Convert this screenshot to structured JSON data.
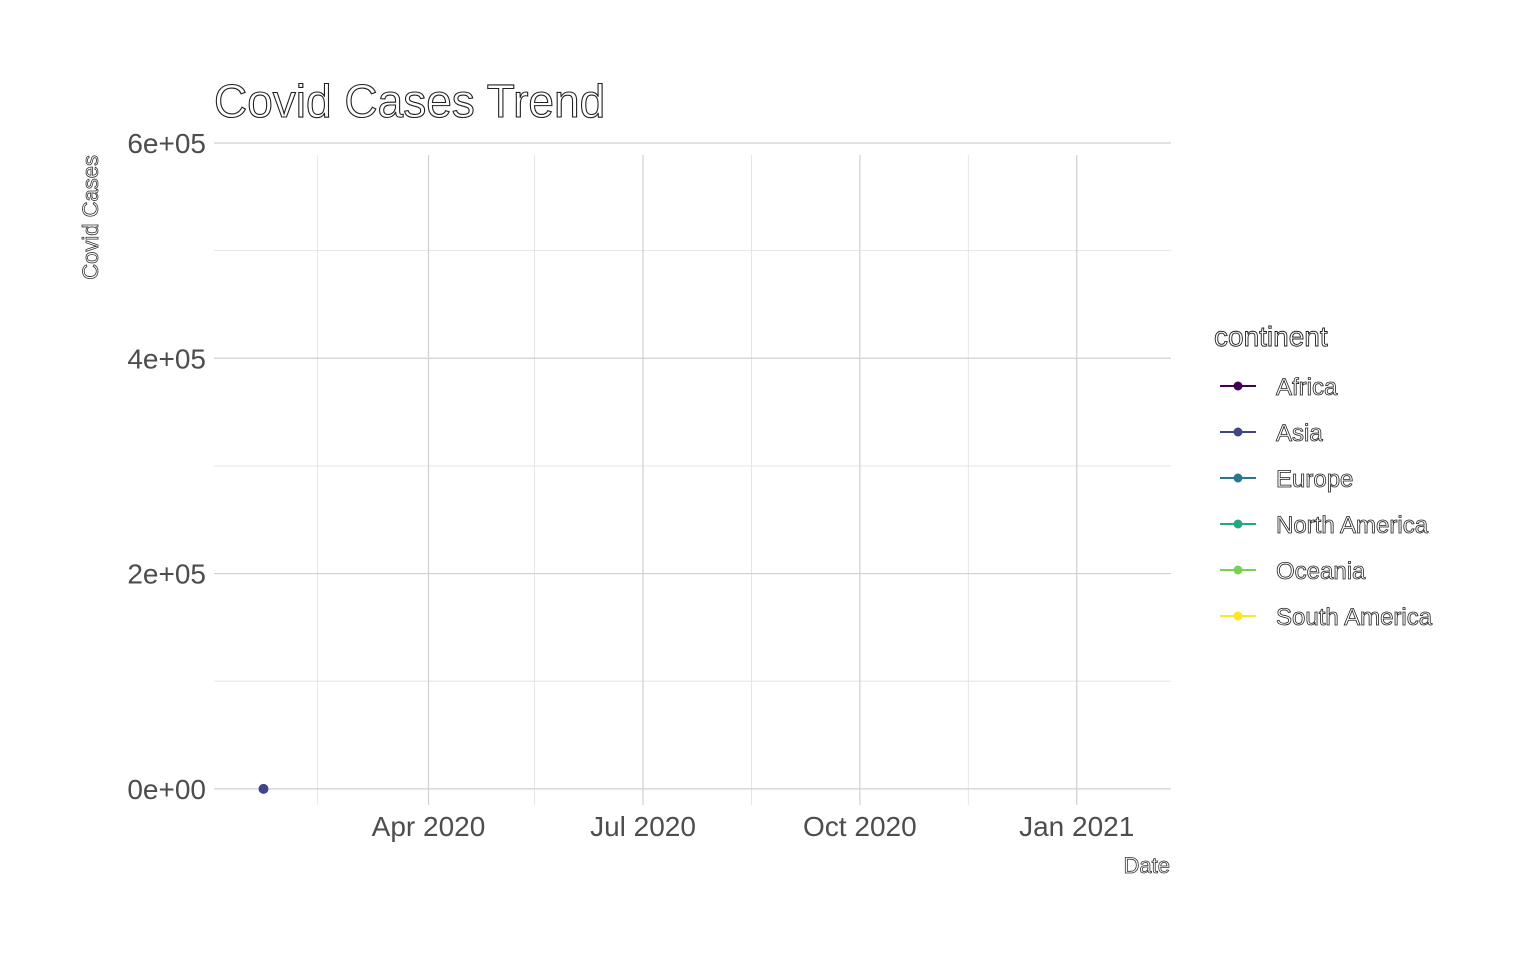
{
  "chart_data": {
    "type": "line",
    "title": "Covid Cases Trend",
    "xlabel": "Date",
    "ylabel": "Covid Cases",
    "x_type": "date",
    "xlim": [
      "2020-01-01",
      "2021-02-10"
    ],
    "ylim": [
      -15000,
      600000
    ],
    "x_ticks": [
      {
        "value": "2020-04-01",
        "label": "Apr 2020"
      },
      {
        "value": "2020-07-01",
        "label": "Jul 2020"
      },
      {
        "value": "2020-10-01",
        "label": "Oct 2020"
      },
      {
        "value": "2021-01-01",
        "label": "Jan 2021"
      }
    ],
    "x_minor_ticks": [
      "2020-02-14",
      "2020-05-16",
      "2020-08-16",
      "2020-11-16"
    ],
    "y_ticks": [
      {
        "value": 0,
        "label": "0e+00"
      },
      {
        "value": 200000,
        "label": "2e+05"
      },
      {
        "value": 400000,
        "label": "4e+05"
      },
      {
        "value": 600000,
        "label": "6e+05"
      }
    ],
    "y_minor_ticks": [
      100000,
      300000,
      500000
    ],
    "grid": true,
    "legend": {
      "title": "continent",
      "position": "right"
    },
    "series": [
      {
        "name": "Africa",
        "color": "#440154",
        "points": []
      },
      {
        "name": "Asia",
        "color": "#414487",
        "points": [
          {
            "x": "2020-01-22",
            "y": 0
          }
        ]
      },
      {
        "name": "Europe",
        "color": "#2A788E",
        "points": []
      },
      {
        "name": "North America",
        "color": "#22A884",
        "points": []
      },
      {
        "name": "Oceania",
        "color": "#7AD151",
        "points": []
      },
      {
        "name": "South America",
        "color": "#FDE725",
        "points": []
      }
    ]
  }
}
